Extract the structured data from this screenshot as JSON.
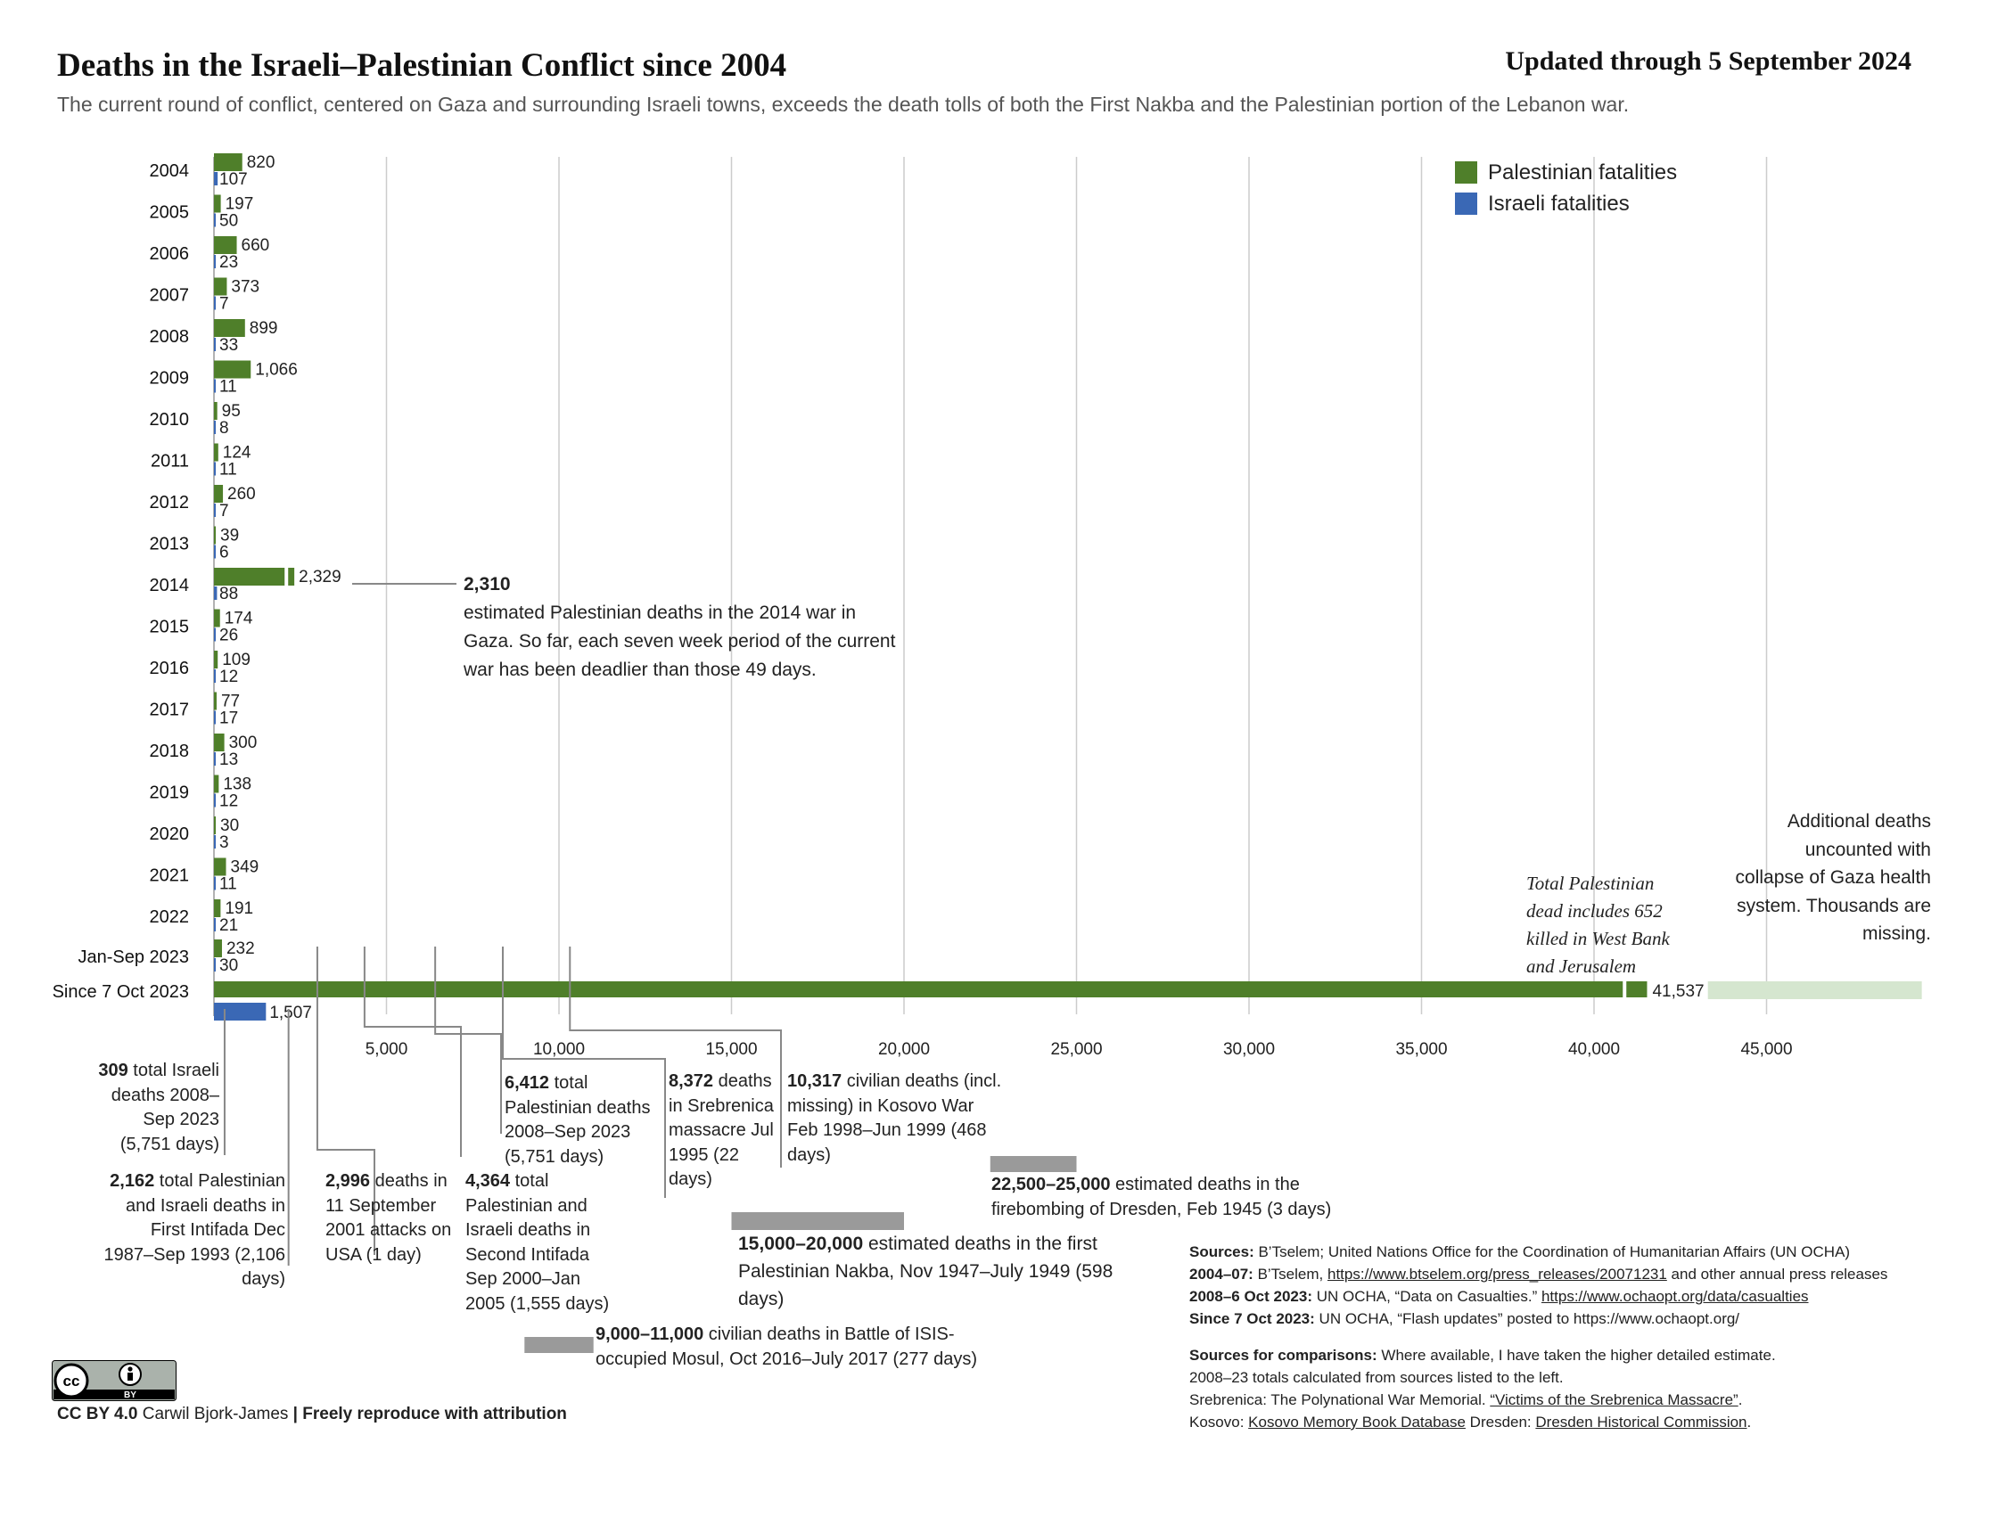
{
  "header": {
    "title": "Deaths in the Israeli–Palestinian Conflict since 2004",
    "updated": "Updated through 5 September 2024",
    "subtitle": "The current round of conflict, centered on Gaza and surrounding Israeli towns, exceeds the death tolls of both the First Nakba and the Palestinian portion of the Lebanon war."
  },
  "legend": {
    "items": [
      {
        "label": "Palestinian fatalities",
        "color": "#4f7f2a"
      },
      {
        "label": "Israeli fatalities",
        "color": "#3a68b5"
      }
    ]
  },
  "colors": {
    "palestinian": "#4f7f2a",
    "israeli": "#3a68b5",
    "uncounted": "#d5e6cf",
    "comparison": "#9a9a9a",
    "grid": "#cccccc",
    "leader": "#888888"
  },
  "chart_data": {
    "type": "bar",
    "orientation": "horizontal",
    "categories": [
      "2004",
      "2005",
      "2006",
      "2007",
      "2008",
      "2009",
      "2010",
      "2011",
      "2012",
      "2013",
      "2014",
      "2015",
      "2016",
      "2017",
      "2018",
      "2019",
      "2020",
      "2021",
      "2022",
      "Jan-Sep 2023",
      "Since 7 Oct 2023"
    ],
    "series": [
      {
        "name": "Palestinian fatalities",
        "values": [
          820,
          197,
          660,
          373,
          899,
          1066,
          95,
          124,
          260,
          39,
          2329,
          174,
          109,
          77,
          300,
          138,
          30,
          349,
          191,
          232,
          41537
        ],
        "labels": [
          "820",
          "197",
          "660",
          "373",
          "899",
          "1,066",
          "95",
          "124",
          "260",
          "39",
          "2,329",
          "174",
          "109",
          "77",
          "300",
          "138",
          "30",
          "349",
          "191",
          "232",
          "41,537"
        ]
      },
      {
        "name": "Israeli fatalities",
        "values": [
          107,
          50,
          23,
          7,
          33,
          11,
          8,
          11,
          7,
          6,
          88,
          26,
          12,
          17,
          13,
          12,
          3,
          11,
          21,
          30,
          1507
        ],
        "labels": [
          "107",
          "50",
          "23",
          "7",
          "33",
          "11",
          "8",
          "11",
          "7",
          "6",
          "88",
          "26",
          "12",
          "17",
          "13",
          "12",
          "3",
          "11",
          "21",
          "30",
          "1,507"
        ]
      }
    ],
    "xlim": [
      0,
      49500
    ],
    "xticks": [
      5000,
      10000,
      15000,
      20000,
      25000,
      30000,
      35000,
      40000,
      45000
    ],
    "xtick_labels": [
      "5,000",
      "10,000",
      "15,000",
      "20,000",
      "25,000",
      "30,000",
      "35,000",
      "40,000",
      "45,000"
    ],
    "grid": true,
    "legend_position": "top-right",
    "west_bank_jerusalem_included": 652,
    "uncounted_range": [
      43300,
      49500
    ],
    "comparison_bars": [
      {
        "label": "15,000–20,000",
        "range": [
          15000,
          20000
        ]
      },
      {
        "label": "22,500–25,000",
        "range": [
          22500,
          25000
        ]
      },
      {
        "label": "9,000–11,000",
        "range": [
          9000,
          11000
        ]
      }
    ],
    "reference_markers": [
      {
        "label": "309",
        "value": 309
      },
      {
        "label": "2,162",
        "value": 2162
      },
      {
        "label": "2,996",
        "value": 2996
      },
      {
        "label": "4,364",
        "value": 4364
      },
      {
        "label": "6,412",
        "value": 6412
      },
      {
        "label": "8,372",
        "value": 8372
      },
      {
        "label": "10,317",
        "value": 10317
      }
    ]
  },
  "annotations": {
    "war2014": {
      "bold": "2,310",
      "text": "estimated Palestinian  deaths in the 2014 war in Gaza. So far, each seven week period of the current war has been deadlier than those 49 days."
    },
    "total_pal": {
      "text": "Total Palestinian dead includes 652 killed in West Bank and Jerusalem"
    },
    "uncounted": {
      "text": "Additional deaths uncounted with collapse of Gaza health system. Thousands are missing."
    },
    "israeli_total": {
      "bold": "309",
      "text": " total Israeli deaths 2008–Sep 2023 (5,751 days)"
    },
    "first_intifada": {
      "bold": "2,162",
      "text": " total Palestinian and Israeli deaths in First Intifada Dec 1987–Sep 1993 (2,106 days)"
    },
    "sept11": {
      "bold": "2,996",
      "text": " deaths in 11 September 2001 attacks on USA (1 day)"
    },
    "second_intifada": {
      "bold": "4,364",
      "text": " total Palestinian and Israeli deaths in Second Intifada Sep 2000–Jan 2005 (1,555 days)"
    },
    "pal_total": {
      "bold": "6,412",
      "text": " total Palestinian deaths 2008–Sep 2023 (5,751 days)"
    },
    "srebrenica": {
      "bold": "8,372",
      "text": " deaths in Srebrenica massacre Jul 1995 (22 days)"
    },
    "kosovo": {
      "bold": "10,317",
      "text": " civilian deaths (incl. missing) in Kosovo War Feb 1998–Jun 1999 (468 days)"
    },
    "dresden": {
      "bold": "22,500–25,000",
      "text": " estimated deaths in the firebombing of Dresden, Feb 1945 (3 days)"
    },
    "nakba": {
      "bold": "15,000–20,000",
      "text": " estimated deaths in the first Palestinian Nakba, Nov 1947–July 1949 (598 days)"
    },
    "mosul": {
      "bold": "9,000–11,000",
      "text": " civilian deaths in Battle of ISIS-occupied Mosul, Oct 2016–July 2017 (277 days)"
    }
  },
  "sources": {
    "l1_label": "Sources:",
    "l1_text": " B’Tselem;  United Nations Office for the Coordination of Humanitarian Affairs (UN OCHA)",
    "l2_label": "2004–07:",
    "l2_text": " B’Tselem, ",
    "l2_link": "https://www.btselem.org/press_releases/20071231",
    "l2_tail": " and other annual press releases",
    "l3_label": "2008–6 Oct 2023:",
    "l3_text": " UN OCHA, “Data on Casualties.” ",
    "l3_link": "https://www.ochaopt.org/data/casualties",
    "l4_label": "Since 7 Oct 2023:",
    "l4_text": " UN OCHA, “Flash updates” posted to https://www.ochaopt.org/",
    "c1_label": "Sources for comparisons:",
    "c1_text": " Where available, I have taken the higher detailed estimate.",
    "c2_text": "2008–23 totals calculated from sources listed to the left.",
    "c3_text": "Srebrenica: The Polynational War Memorial. ",
    "c3_link": "“Victims of the Srebrenica Massacre”",
    "c3_tail": ".",
    "c4_text": "Kosovo: ",
    "c4_link": "Kosovo Memory Book Database",
    "c4_mid": " Dresden: ",
    "c4_link2": "Dresden Historical Commission",
    "c4_tail": "."
  },
  "credit": {
    "license": "CC BY 4.0",
    "author": " Carwil Bjork-James",
    "sep": " | ",
    "note": "Freely reproduce with attribution",
    "badge_cc": "cc",
    "badge_by": "BY"
  }
}
